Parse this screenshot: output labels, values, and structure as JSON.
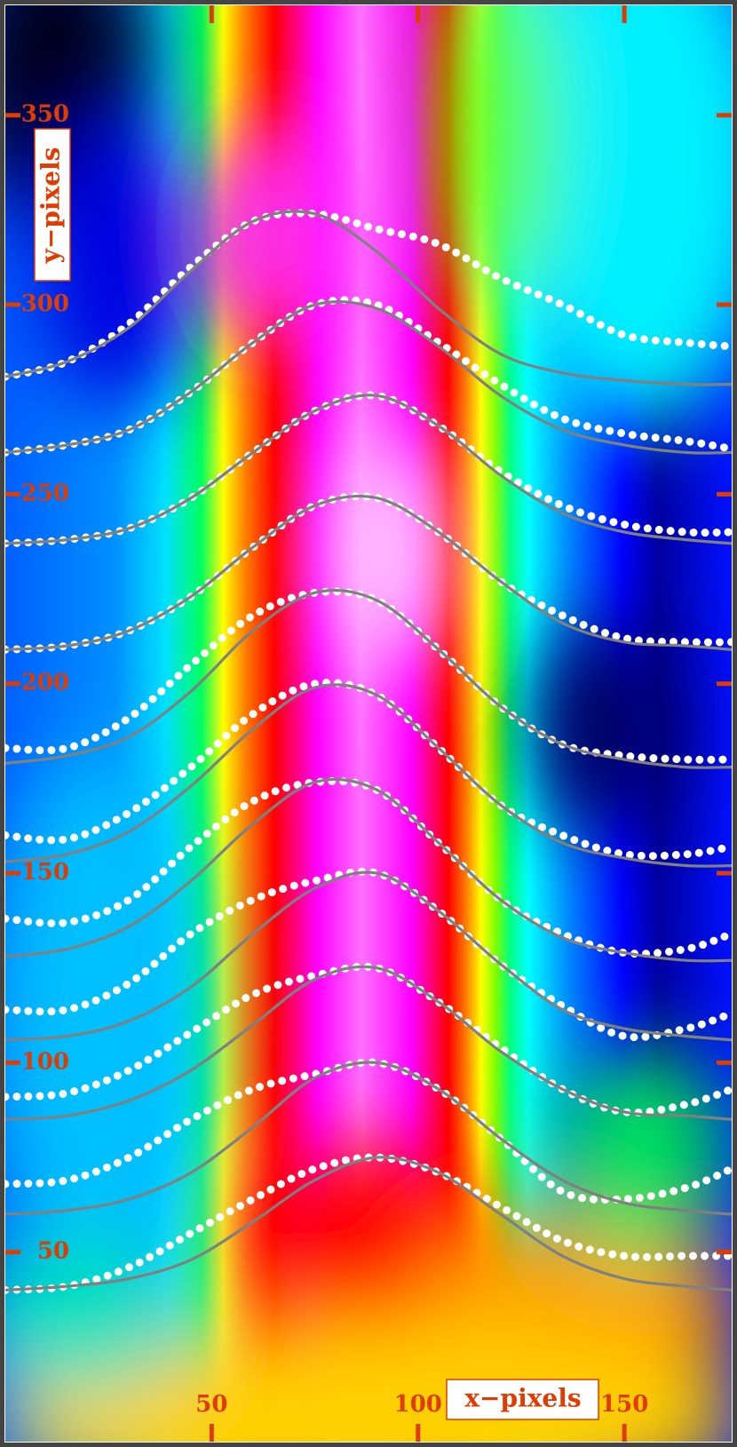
{
  "chart_data": {
    "type": "line",
    "x_label": "x−pixels",
    "y_label": "y−pixels",
    "xlim": [
      0,
      176
    ],
    "ylim": [
      0,
      379
    ],
    "xticks": [
      50,
      100,
      150
    ],
    "yticks": [
      50,
      100,
      150,
      200,
      250,
      300,
      350
    ],
    "x": [
      0,
      15,
      30,
      45,
      60,
      75,
      90,
      105,
      120,
      135,
      150,
      165,
      176
    ],
    "series": [
      {
        "color": "#ffffff",
        "line_style": "dotted",
        "values": [
          281,
          285,
          295,
          310,
          322,
          324,
          320,
          316,
          307,
          300,
          292,
          290,
          289
        ]
      },
      {
        "color": "#ffffff",
        "line_style": "dotted",
        "values": [
          261,
          263,
          267,
          277,
          290,
          300,
          300,
          290,
          279,
          270,
          266,
          264,
          262
        ]
      },
      {
        "color": "#ffffff",
        "line_style": "dotted",
        "values": [
          237,
          238,
          241,
          249,
          261,
          272,
          276,
          268,
          256,
          247,
          242,
          240,
          240
        ]
      },
      {
        "color": "#ffffff",
        "line_style": "dotted",
        "values": [
          209,
          210,
          214,
          223,
          236,
          247,
          249,
          240,
          227,
          218,
          212,
          211,
          211
        ]
      },
      {
        "color": "#ffffff",
        "line_style": "dotted",
        "values": [
          183,
          183,
          191,
          205,
          218,
          224,
          222,
          209,
          194,
          184,
          181,
          180,
          180
        ]
      },
      {
        "color": "#ffffff",
        "line_style": "dotted",
        "values": [
          160,
          159,
          166,
          178,
          192,
          200,
          197,
          183,
          168,
          160,
          155,
          155,
          157
        ]
      },
      {
        "color": "#ffffff",
        "line_style": "dotted",
        "values": [
          138,
          137,
          143,
          157,
          169,
          174,
          172,
          158,
          143,
          134,
          129,
          130,
          134
        ]
      },
      {
        "color": "#ffffff",
        "line_style": "dotted",
        "values": [
          114,
          114,
          121,
          134,
          143,
          148,
          150,
          140,
          126,
          115,
          107,
          109,
          113
        ]
      },
      {
        "color": "#ffffff",
        "line_style": "dotted",
        "values": [
          91,
          92,
          98,
          108,
          118,
          123,
          125,
          116,
          104,
          93,
          87,
          89,
          93
        ]
      },
      {
        "color": "#ffffff",
        "line_style": "dotted",
        "values": [
          68,
          69,
          75,
          85,
          93,
          97,
          100,
          93,
          80,
          66,
          64,
          67,
          72
        ]
      },
      {
        "color": "#ffffff",
        "line_style": "dotted",
        "values": [
          40,
          41,
          46,
          55,
          64,
          72,
          75,
          71,
          62,
          53,
          49,
          49,
          49
        ]
      },
      {
        "color": "#808080",
        "line_style": "solid",
        "values": [
          281,
          285,
          294,
          309,
          322,
          324,
          314,
          299,
          287,
          282,
          280,
          279,
          279
        ]
      },
      {
        "color": "#808080",
        "line_style": "solid",
        "values": [
          261,
          263,
          267,
          277,
          290,
          300,
          299,
          289,
          276,
          267,
          263,
          261,
          261
        ]
      },
      {
        "color": "#808080",
        "line_style": "solid",
        "values": [
          237,
          238,
          241,
          249,
          261,
          272,
          276,
          268,
          255,
          245,
          240,
          238,
          237
        ]
      },
      {
        "color": "#808080",
        "line_style": "solid",
        "values": [
          209,
          210,
          214,
          223,
          236,
          247,
          249,
          240,
          227,
          216,
          211,
          210,
          209
        ]
      },
      {
        "color": "#808080",
        "line_style": "solid",
        "values": [
          179,
          181,
          186,
          198,
          214,
          224,
          222,
          209,
          194,
          184,
          180,
          178,
          178
        ]
      },
      {
        "color": "#808080",
        "line_style": "solid",
        "values": [
          153,
          155,
          161,
          173,
          188,
          199,
          197,
          183,
          168,
          158,
          154,
          152,
          152
        ]
      },
      {
        "color": "#808080",
        "line_style": "solid",
        "values": [
          128,
          130,
          136,
          148,
          163,
          174,
          172,
          158,
          143,
          133,
          129,
          127,
          127
        ]
      },
      {
        "color": "#808080",
        "line_style": "solid",
        "values": [
          106,
          107,
          111,
          120,
          134,
          146,
          150,
          140,
          126,
          114,
          109,
          107,
          106
        ]
      },
      {
        "color": "#808080",
        "line_style": "solid",
        "values": [
          85,
          86,
          90,
          98,
          110,
          122,
          125,
          116,
          103,
          93,
          87,
          86,
          85
        ]
      },
      {
        "color": "#808080",
        "line_style": "solid",
        "values": [
          60,
          61,
          64,
          71,
          83,
          96,
          100,
          93,
          80,
          69,
          63,
          61,
          60
        ]
      },
      {
        "color": "#808080",
        "line_style": "solid",
        "values": [
          40,
          41,
          43,
          48,
          58,
          69,
          75,
          71,
          60,
          49,
          43,
          41,
          40
        ]
      }
    ]
  }
}
